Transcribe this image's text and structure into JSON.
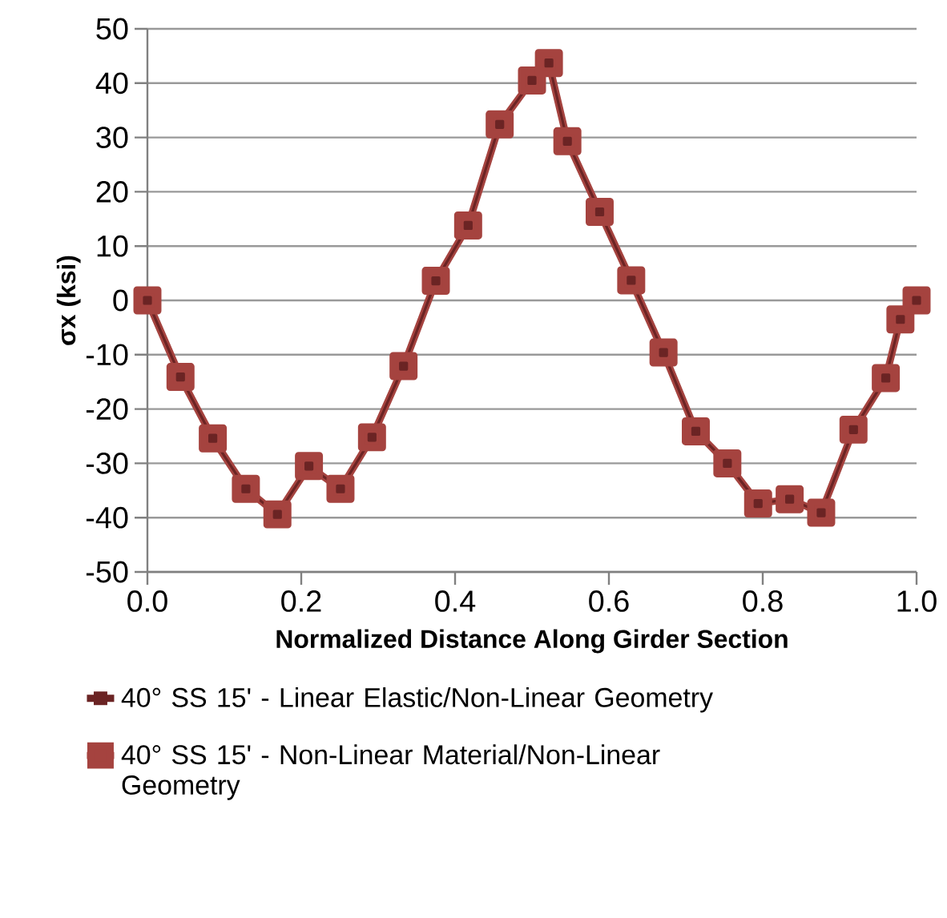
{
  "chart_data": {
    "type": "line",
    "xlabel": "Normalized Distance Along Girder Section",
    "ylabel": "σx (ksi)",
    "xlim": [
      0,
      1
    ],
    "xticks": [
      {
        "value": 0,
        "label": "0.0"
      },
      {
        "value": 0.2,
        "label": "0.2"
      },
      {
        "value": 0.4,
        "label": "0.4"
      },
      {
        "value": 0.6,
        "label": "0.6"
      },
      {
        "value": 0.8,
        "label": "0.8"
      },
      {
        "value": 1,
        "label": "1.0"
      }
    ],
    "ylim": [
      -50,
      50
    ],
    "yticks": [
      -50,
      -40,
      -30,
      -20,
      -10,
      0,
      10,
      20,
      30,
      40,
      50
    ],
    "grid": "y",
    "legend": "bottom",
    "x": [
      0,
      0.043,
      0.085,
      0.128,
      0.169,
      0.21,
      0.251,
      0.292,
      0.333,
      0.375,
      0.417,
      0.458,
      0.5,
      0.522,
      0.546,
      0.588,
      0.629,
      0.671,
      0.713,
      0.754,
      0.794,
      0.835,
      0.876,
      0.918,
      0.96,
      0.979,
      1.0
    ],
    "series": [
      {
        "name": "40° SS 15' - Linear Elastic/Non-Linear Geometry",
        "color": "#6b2424",
        "marker": "square",
        "values": [
          0,
          -14.1,
          -25.4,
          -34.7,
          -39.4,
          -30.5,
          -34.7,
          -25.2,
          -12.1,
          3.6,
          13.8,
          32.4,
          40.5,
          43.7,
          29.3,
          16.3,
          3.7,
          -9.6,
          -24.1,
          -30.0,
          -37.4,
          -36.6,
          -39.1,
          -23.8,
          -14.3,
          -3.5,
          0
        ]
      },
      {
        "name": "40° SS 15' - Non-Linear Material/Non-Linear Geometry",
        "color": "#a5433f",
        "marker": "square",
        "values": [
          0,
          -14.1,
          -25.4,
          -34.7,
          -39.4,
          -30.5,
          -34.7,
          -25.2,
          -12.1,
          3.6,
          13.8,
          32.4,
          40.5,
          43.7,
          29.3,
          16.3,
          3.7,
          -9.6,
          -24.1,
          -30.0,
          -37.4,
          -36.6,
          -39.1,
          -23.8,
          -14.3,
          -3.5,
          0
        ]
      }
    ]
  }
}
